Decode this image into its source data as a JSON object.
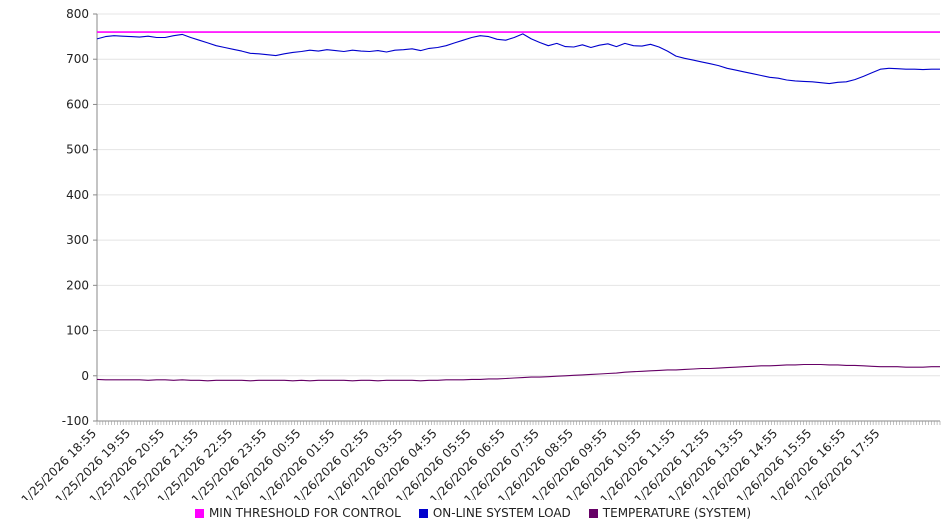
{
  "chart_data": {
    "type": "line",
    "title": "",
    "xlabel": "",
    "ylabel": "",
    "ylim": [
      -100,
      800
    ],
    "y_ticks": [
      -100,
      0,
      100,
      200,
      300,
      400,
      500,
      600,
      700,
      800
    ],
    "grid": true,
    "legend_position": "bottom",
    "points_per_label": 4,
    "x_labels": [
      "1/25/2026 18:55",
      "1/25/2026 19:55",
      "1/25/2026 20:55",
      "1/25/2026 21:55",
      "1/25/2026 22:55",
      "1/25/2026 23:55",
      "1/26/2026 00:55",
      "1/26/2026 01:55",
      "1/26/2026 02:55",
      "1/26/2026 03:55",
      "1/26/2026 04:55",
      "1/26/2026 05:55",
      "1/26/2026 06:55",
      "1/26/2026 07:55",
      "1/26/2026 08:55",
      "1/26/2026 09:55",
      "1/26/2026 10:55",
      "1/26/2026 11:55",
      "1/26/2026 12:55",
      "1/26/2026 13:55",
      "1/26/2026 14:55",
      "1/26/2026 15:55",
      "1/26/2026 16:55",
      "1/26/2026 17:55"
    ],
    "series": [
      {
        "name": "MIN THRESHOLD FOR CONTROL",
        "color": "#ff00ff",
        "constant": 760
      },
      {
        "name": "ON-LINE SYSTEM LOAD",
        "color": "#0000cd",
        "values": [
          745,
          750,
          752,
          751,
          750,
          749,
          751,
          748,
          748,
          752,
          755,
          748,
          742,
          736,
          730,
          726,
          722,
          718,
          713,
          712,
          710,
          708,
          712,
          715,
          717,
          720,
          718,
          721,
          719,
          717,
          720,
          718,
          717,
          719,
          716,
          720,
          721,
          723,
          719,
          724,
          726,
          730,
          736,
          742,
          748,
          752,
          750,
          744,
          742,
          748,
          756,
          745,
          737,
          730,
          735,
          728,
          727,
          732,
          726,
          731,
          734,
          728,
          735,
          730,
          729,
          733,
          727,
          718,
          707,
          702,
          698,
          694,
          690,
          686,
          680,
          676,
          672,
          668,
          664,
          660,
          658,
          654,
          652,
          651,
          650,
          648,
          646,
          649,
          650,
          655,
          662,
          670,
          678,
          680,
          679,
          678,
          678,
          677,
          678,
          678
        ]
      },
      {
        "name": "TEMPERATURE (SYSTEM)",
        "color": "#660066",
        "values": [
          -8,
          -9,
          -9,
          -9,
          -9,
          -9,
          -10,
          -9,
          -9,
          -10,
          -9,
          -10,
          -10,
          -11,
          -10,
          -10,
          -10,
          -10,
          -11,
          -10,
          -10,
          -10,
          -10,
          -11,
          -10,
          -11,
          -10,
          -10,
          -10,
          -10,
          -11,
          -10,
          -10,
          -11,
          -10,
          -10,
          -10,
          -10,
          -11,
          -10,
          -10,
          -9,
          -9,
          -9,
          -8,
          -8,
          -7,
          -7,
          -6,
          -5,
          -4,
          -3,
          -3,
          -2,
          -1,
          0,
          1,
          2,
          3,
          4,
          5,
          6,
          8,
          9,
          10,
          11,
          12,
          13,
          13,
          14,
          15,
          16,
          16,
          17,
          18,
          19,
          20,
          21,
          22,
          22,
          23,
          24,
          24,
          25,
          25,
          25,
          24,
          24,
          23,
          23,
          22,
          21,
          20,
          20,
          20,
          19,
          19,
          19,
          20,
          20
        ]
      }
    ]
  }
}
